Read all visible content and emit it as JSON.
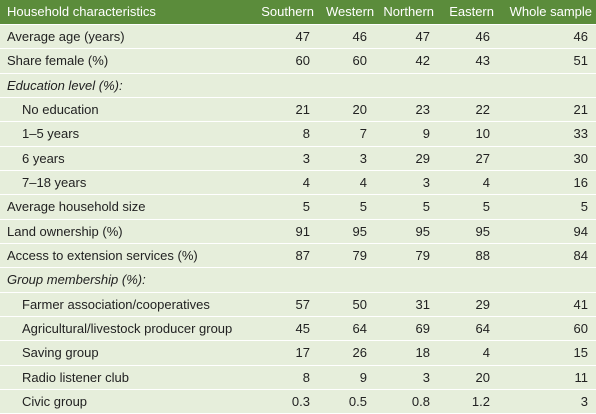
{
  "table": {
    "columns": [
      "Household characteristics",
      "Southern",
      "Western",
      "Northern",
      "Eastern",
      "Whole sample"
    ],
    "rows": [
      {
        "label": "Average age (years)",
        "cells": [
          47,
          46,
          47,
          46,
          46
        ]
      },
      {
        "label": "Share female (%)",
        "cells": [
          60,
          60,
          42,
          43,
          51
        ]
      },
      {
        "section": "Education level (%):",
        "items": [
          {
            "label": "No education",
            "cells": [
              21,
              20,
              23,
              22,
              21
            ]
          },
          {
            "label": "1–5 years",
            "cells": [
              8,
              7,
              9,
              10,
              33
            ]
          },
          {
            "label": "6 years",
            "cells": [
              3,
              3,
              29,
              27,
              30
            ]
          },
          {
            "label": "7–18 years",
            "cells": [
              4,
              4,
              3,
              4,
              16
            ]
          }
        ]
      },
      {
        "label": "Average household size",
        "cells": [
          5,
          5,
          5,
          5,
          5
        ]
      },
      {
        "label": "Land ownership (%)",
        "cells": [
          91,
          95,
          95,
          95,
          94
        ]
      },
      {
        "label": "Access to extension services (%)",
        "cells": [
          87,
          79,
          79,
          88,
          84
        ]
      },
      {
        "section": "Group membership (%):",
        "items": [
          {
            "label": "Farmer association/cooperatives",
            "cells": [
              57,
              50,
              31,
              29,
              41
            ]
          },
          {
            "label": "Agricultural/livestock producer group",
            "cells": [
              45,
              64,
              69,
              64,
              60
            ]
          },
          {
            "label": "Saving group",
            "cells": [
              17,
              26,
              18,
              4,
              15
            ]
          },
          {
            "label": "Radio listener club",
            "cells": [
              8,
              9,
              3,
              20,
              11
            ]
          },
          {
            "label": "Civic group",
            "cells": [
              0.3,
              0.5,
              0.8,
              1.2,
              3
            ]
          }
        ]
      }
    ]
  }
}
